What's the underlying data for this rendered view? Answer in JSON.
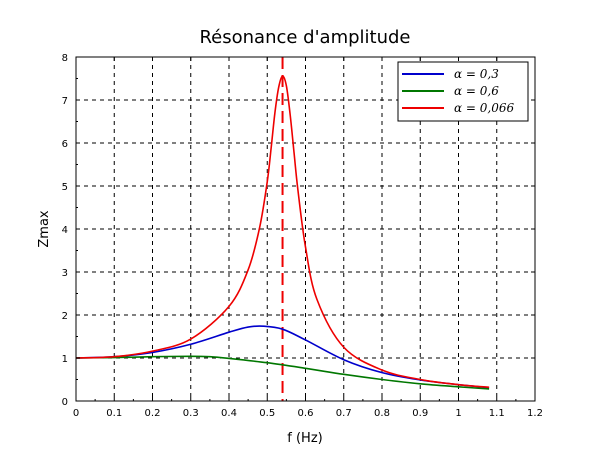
{
  "chart_data": {
    "type": "line",
    "title": "Résonance d'amplitude",
    "xlabel": "f (Hz)",
    "ylabel": "Zmax",
    "xlim": [
      0,
      1.2
    ],
    "ylim": [
      0,
      8
    ],
    "x_ticks": [
      0,
      0.1,
      0.2,
      0.3,
      0.4,
      0.5,
      0.6,
      0.7,
      0.8,
      0.9,
      1,
      1.1,
      1.2
    ],
    "x_tick_labels": [
      "0",
      "0.1",
      "0.2",
      "0.3",
      "0.4",
      "0.5",
      "0.6",
      "0.7",
      "0.8",
      "0.9",
      "1",
      "1.1",
      "1.2"
    ],
    "y_ticks": [
      0,
      1,
      2,
      3,
      4,
      5,
      6,
      7,
      8
    ],
    "y_tick_labels": [
      "0",
      "1",
      "2",
      "3",
      "4",
      "5",
      "6",
      "7",
      "8"
    ],
    "grid": true,
    "grid_style": "dashed",
    "legend_position": "top-right",
    "series": [
      {
        "name": "α = 0,3",
        "color": "#0000cc",
        "x": [
          0,
          0.1,
          0.2,
          0.3,
          0.4,
          0.45,
          0.49,
          0.54,
          0.6,
          0.7,
          0.8,
          0.9,
          1.0,
          1.08
        ],
        "y": [
          1.0,
          1.03,
          1.13,
          1.32,
          1.6,
          1.72,
          1.74,
          1.67,
          1.42,
          0.96,
          0.66,
          0.49,
          0.38,
          0.31
        ]
      },
      {
        "name": "α = 0,6",
        "color": "#007700",
        "x": [
          0,
          0.1,
          0.2,
          0.3,
          0.35,
          0.4,
          0.5,
          0.6,
          0.7,
          0.8,
          0.9,
          1.0,
          1.08
        ],
        "y": [
          1.0,
          1.01,
          1.03,
          1.04,
          1.03,
          0.99,
          0.89,
          0.76,
          0.62,
          0.5,
          0.4,
          0.33,
          0.28
        ]
      },
      {
        "name": "α = 0,066",
        "color": "#ee0000",
        "x": [
          0,
          0.1,
          0.2,
          0.3,
          0.4,
          0.45,
          0.48,
          0.5,
          0.51,
          0.52,
          0.53,
          0.54,
          0.55,
          0.56,
          0.57,
          0.58,
          0.6,
          0.63,
          0.7,
          0.8,
          0.9,
          1.0,
          1.08
        ],
        "y": [
          1.0,
          1.03,
          1.16,
          1.44,
          2.2,
          3.05,
          4.03,
          5.1,
          5.87,
          6.7,
          7.3,
          7.56,
          7.33,
          6.65,
          5.78,
          4.92,
          3.58,
          2.36,
          1.25,
          0.72,
          0.5,
          0.38,
          0.32
        ]
      }
    ],
    "annotations": [
      {
        "type": "vertical-line",
        "x": 0.54,
        "color": "#ee0000",
        "style": "dashed"
      }
    ]
  }
}
